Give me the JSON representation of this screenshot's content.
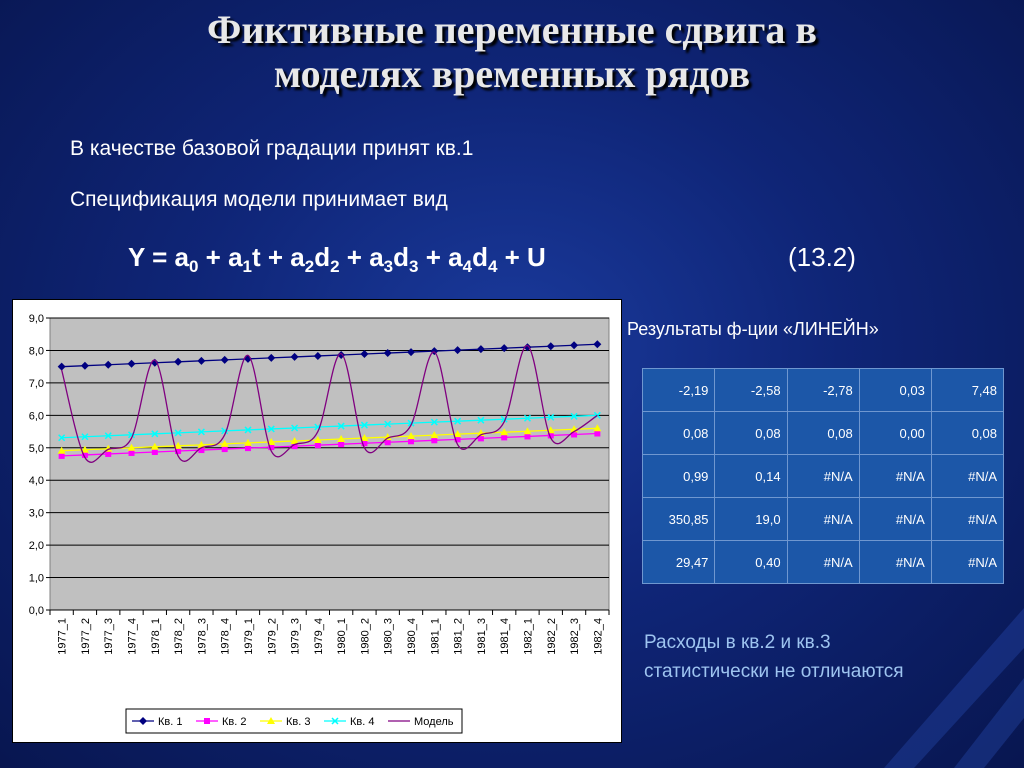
{
  "slide": {
    "title_line1": "Фиктивные переменные сдвига в",
    "title_line2": "моделях временных рядов",
    "text_line1": "В качестве базовой градации принят кв.1",
    "text_line2": "Спецификация модели принимает вид",
    "formula": {
      "y": "Y = a",
      "sub0": "0",
      "p1": " + a",
      "sub1": "1",
      "t": "t + a",
      "sub2a": "2",
      "d2": "d",
      "sub2b": "2",
      "p3": " + a",
      "sub3a": "3",
      "d3": "d",
      "sub3b": "3",
      "p4": " + a",
      "sub4a": "4",
      "d4": "d",
      "sub4b": "4",
      "u": " + U"
    },
    "equation_number": "(13.2)",
    "results_label": "Результаты ф-ции «ЛИНЕЙН»",
    "results_table": [
      [
        "-2,19",
        "-2,58",
        "-2,78",
        "0,03",
        "7,48"
      ],
      [
        "0,08",
        "0,08",
        "0,08",
        "0,00",
        "0,08"
      ],
      [
        "0,99",
        "0,14",
        "#N/A",
        "#N/A",
        "#N/A"
      ],
      [
        "350,85",
        "19,0",
        "#N/A",
        "#N/A",
        "#N/A"
      ],
      [
        "29,47",
        "0,40",
        "#N/A",
        "#N/A",
        "#N/A"
      ]
    ],
    "conclusion_line1": "Расходы в кв.2 и кв.3",
    "conclusion_line2": "статистически не отличаются"
  },
  "chart_data": {
    "type": "line",
    "title": "",
    "xlabel": "",
    "ylabel": "",
    "ylim": [
      0,
      9
    ],
    "y_ticks": [
      "0,0",
      "1,0",
      "2,0",
      "3,0",
      "4,0",
      "5,0",
      "6,0",
      "7,0",
      "8,0",
      "9,0"
    ],
    "grid": true,
    "legend": "bottom",
    "categories": [
      "1977_1",
      "1977_2",
      "1977_3",
      "1977_4",
      "1978_1",
      "1978_2",
      "1978_3",
      "1978_4",
      "1979_1",
      "1979_2",
      "1979_3",
      "1979_4",
      "1980_1",
      "1980_2",
      "1980_3",
      "1980_4",
      "1981_1",
      "1981_2",
      "1981_3",
      "1981_4",
      "1982_1",
      "1982_2",
      "1982_3",
      "1982_4"
    ],
    "series": [
      {
        "name": "Кв. 1",
        "color": "#000080",
        "marker": "diamond",
        "values": [
          7.5,
          7.53,
          7.56,
          7.59,
          7.62,
          7.65,
          7.68,
          7.71,
          7.74,
          7.77,
          7.8,
          7.83,
          7.86,
          7.89,
          7.92,
          7.95,
          7.98,
          8.01,
          8.04,
          8.07,
          8.1,
          8.13,
          8.16,
          8.19
        ]
      },
      {
        "name": "Кв. 2",
        "color": "#ff00ff",
        "marker": "square",
        "values": [
          4.75,
          4.78,
          4.81,
          4.84,
          4.87,
          4.9,
          4.93,
          4.96,
          4.99,
          5.02,
          5.05,
          5.08,
          5.11,
          5.14,
          5.17,
          5.2,
          5.23,
          5.26,
          5.29,
          5.32,
          5.35,
          5.38,
          5.41,
          5.44
        ]
      },
      {
        "name": "Кв. 3",
        "color": "#ffff00",
        "marker": "triangle",
        "values": [
          4.91,
          4.94,
          4.97,
          5.0,
          5.03,
          5.06,
          5.09,
          5.12,
          5.15,
          5.18,
          5.21,
          5.24,
          5.27,
          5.3,
          5.33,
          5.36,
          5.39,
          5.42,
          5.45,
          5.48,
          5.51,
          5.54,
          5.57,
          5.6
        ]
      },
      {
        "name": "Кв. 4",
        "color": "#00ffff",
        "marker": "x",
        "values": [
          5.31,
          5.34,
          5.37,
          5.4,
          5.43,
          5.46,
          5.49,
          5.52,
          5.55,
          5.58,
          5.61,
          5.64,
          5.67,
          5.7,
          5.73,
          5.76,
          5.79,
          5.82,
          5.85,
          5.88,
          5.91,
          5.94,
          5.97,
          6.0
        ]
      },
      {
        "name": "Модель",
        "color": "#800080",
        "marker": "none",
        "values": [
          7.4,
          4.7,
          4.95,
          5.3,
          7.7,
          4.75,
          5.0,
          5.4,
          7.85,
          4.9,
          5.1,
          5.5,
          7.9,
          5.0,
          5.3,
          5.7,
          7.95,
          5.1,
          5.4,
          5.8,
          8.15,
          5.3,
          5.5,
          6.0
        ]
      }
    ]
  }
}
